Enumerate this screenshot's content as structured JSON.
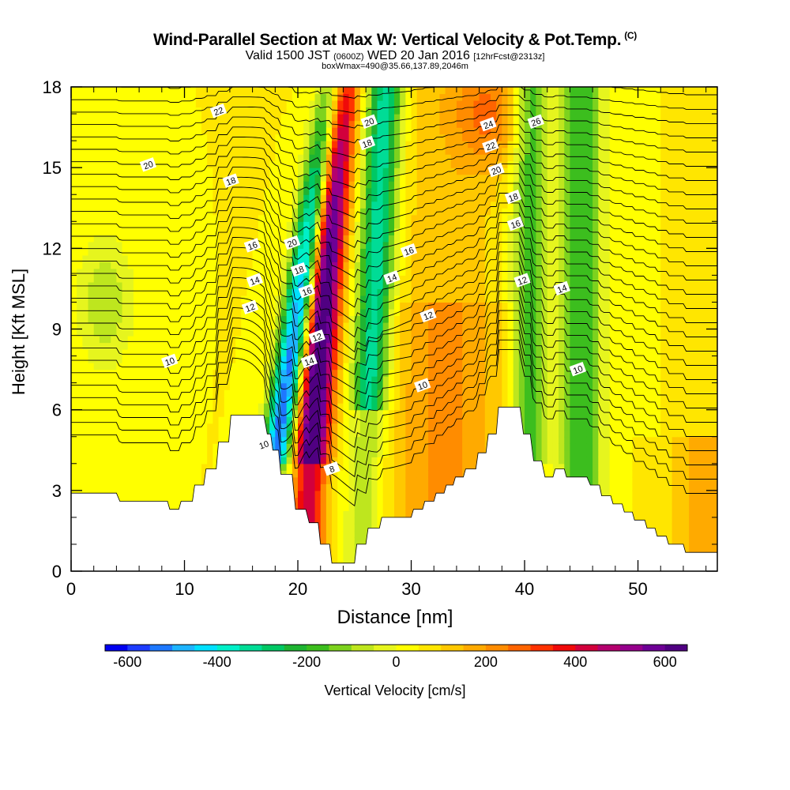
{
  "header": {
    "title": "Wind-Parallel Section at Max W: Vertical Velocity & Pot.Temp.",
    "title_mark": "(C)",
    "subtitle_a": "Valid 1500 JST",
    "subtitle_b": "(0600Z)",
    "subtitle_c": "WED 20 Jan 2016",
    "subtitle_d": "[12hrFcst@2313z]",
    "subtitle2": "boxWmax=490@35.66,137.89,2046m"
  },
  "chart_data": {
    "type": "heatmap",
    "xlabel": "Distance [nm]",
    "ylabel": "Height [Kft MSL]",
    "xlim": [
      0,
      57
    ],
    "ylim": [
      0,
      18
    ],
    "xticks": [
      0,
      10,
      20,
      30,
      40,
      50
    ],
    "yticks": [
      0,
      3,
      6,
      9,
      12,
      15,
      18
    ],
    "colorbar": {
      "label": "Vertical Velocity [cm/s]",
      "ticks": [
        -600,
        -400,
        -200,
        0,
        200,
        400,
        600
      ],
      "range": [
        -650,
        650
      ],
      "colors": [
        "#0000f0",
        "#1e3cff",
        "#1e78ff",
        "#1eb4ff",
        "#00e0ff",
        "#00f0c8",
        "#00dc96",
        "#00c864",
        "#1eb432",
        "#3cbe1e",
        "#7dd21e",
        "#bee61e",
        "#e6f51e",
        "#ffff00",
        "#ffe600",
        "#ffc800",
        "#ffaa00",
        "#ff8c00",
        "#ff6400",
        "#ff3200",
        "#f00a0a",
        "#d2003c",
        "#b4006e",
        "#96008c",
        "#6e0096",
        "#500082"
      ]
    },
    "terrain_kft": {
      "x": [
        0,
        4,
        4.3,
        8.5,
        8.7,
        9.5,
        9.7,
        10.7,
        10.9,
        11.7,
        11.9,
        12.8,
        13,
        13.9,
        14.1,
        15,
        15.2,
        17,
        17.3,
        17.6,
        17.8,
        18.3,
        18.5,
        19.5,
        19.8,
        20.7,
        21,
        21.8,
        22,
        22.8,
        23,
        25,
        25.2,
        26,
        26.2,
        27.2,
        27.4,
        30,
        30.2,
        31,
        31.2,
        32,
        32.2,
        32.9,
        33.1,
        33.7,
        33.9,
        34.6,
        34.8,
        35.7,
        35.9,
        36.6,
        36.8,
        37.5,
        37.7,
        39.6,
        39.9,
        40.5,
        40.8,
        41.5,
        41.8,
        42.5,
        42.7,
        43.5,
        43.7,
        45.5,
        45.8,
        46.6,
        46.8,
        47.6,
        47.8,
        48.6,
        48.8,
        49.5,
        49.7,
        50.6,
        50.8,
        51.5,
        51.7,
        52.5,
        52.7,
        54,
        54.2,
        55,
        55.2,
        57
      ],
      "h": [
        2.9,
        2.9,
        2.6,
        2.6,
        2.3,
        2.3,
        2.6,
        2.6,
        3.2,
        3.2,
        3.8,
        3.8,
        4.8,
        4.8,
        5.8,
        5.8,
        5.8,
        5.8,
        5.1,
        5.1,
        4.5,
        4.5,
        3.6,
        3.6,
        2.3,
        2.3,
        1.8,
        1.8,
        1,
        1,
        0.3,
        0.3,
        1,
        1,
        1.6,
        1.6,
        2,
        2,
        2.3,
        2.3,
        2.6,
        2.6,
        2.9,
        2.9,
        3.2,
        3.2,
        3.5,
        3.5,
        3.8,
        3.8,
        4.4,
        4.4,
        5.1,
        5.1,
        6.1,
        6.1,
        5.1,
        5.1,
        4.1,
        4.1,
        3.5,
        3.5,
        3.8,
        3.8,
        3.5,
        3.5,
        3.2,
        3.2,
        2.8,
        2.8,
        2.5,
        2.5,
        2.2,
        2.2,
        1.9,
        1.9,
        1.6,
        1.6,
        1.3,
        1.3,
        1,
        1,
        0.7,
        0.7,
        0.7,
        0.7
      ]
    },
    "potential_temperature_contours": [
      {
        "value": 8,
        "label_x": 23.0,
        "label_y": 3.8
      },
      {
        "value": 10,
        "label_x": 8.7,
        "label_y": 7.8
      },
      {
        "value": 10,
        "label_x": 17.0,
        "label_y": 4.7
      },
      {
        "value": 10,
        "label_x": 31.0,
        "label_y": 6.9
      },
      {
        "value": 10,
        "label_x": 44.7,
        "label_y": 7.5
      },
      {
        "value": 12,
        "label_x": 15.8,
        "label_y": 9.8
      },
      {
        "value": 12,
        "label_x": 21.7,
        "label_y": 8.7
      },
      {
        "value": 12,
        "label_x": 31.5,
        "label_y": 9.5
      },
      {
        "value": 12,
        "label_x": 39.8,
        "label_y": 10.8
      },
      {
        "value": 14,
        "label_x": 16.2,
        "label_y": 10.8
      },
      {
        "value": 14,
        "label_x": 21.0,
        "label_y": 7.8
      },
      {
        "value": 14,
        "label_x": 28.3,
        "label_y": 10.9
      },
      {
        "value": 14,
        "label_x": 43.3,
        "label_y": 10.5
      },
      {
        "value": 16,
        "label_x": 16.0,
        "label_y": 12.1
      },
      {
        "value": 16,
        "label_x": 20.8,
        "label_y": 10.4
      },
      {
        "value": 16,
        "label_x": 29.8,
        "label_y": 11.9
      },
      {
        "value": 16,
        "label_x": 39.2,
        "label_y": 12.9
      },
      {
        "value": 18,
        "label_x": 14.1,
        "label_y": 14.5
      },
      {
        "value": 18,
        "label_x": 20.1,
        "label_y": 11.2
      },
      {
        "value": 18,
        "label_x": 26.1,
        "label_y": 15.9
      },
      {
        "value": 18,
        "label_x": 39.0,
        "label_y": 13.9
      },
      {
        "value": 20,
        "label_x": 6.8,
        "label_y": 15.1
      },
      {
        "value": 20,
        "label_x": 19.5,
        "label_y": 12.2
      },
      {
        "value": 20,
        "label_x": 26.3,
        "label_y": 16.7
      },
      {
        "value": 20,
        "label_x": 37.5,
        "label_y": 14.9
      },
      {
        "value": 22,
        "label_x": 13.0,
        "label_y": 17.1
      },
      {
        "value": 22,
        "label_x": 37.0,
        "label_y": 15.8
      },
      {
        "value": 24,
        "label_x": 36.8,
        "label_y": 16.6
      },
      {
        "value": 26,
        "label_x": 41.0,
        "label_y": 16.7
      }
    ]
  }
}
